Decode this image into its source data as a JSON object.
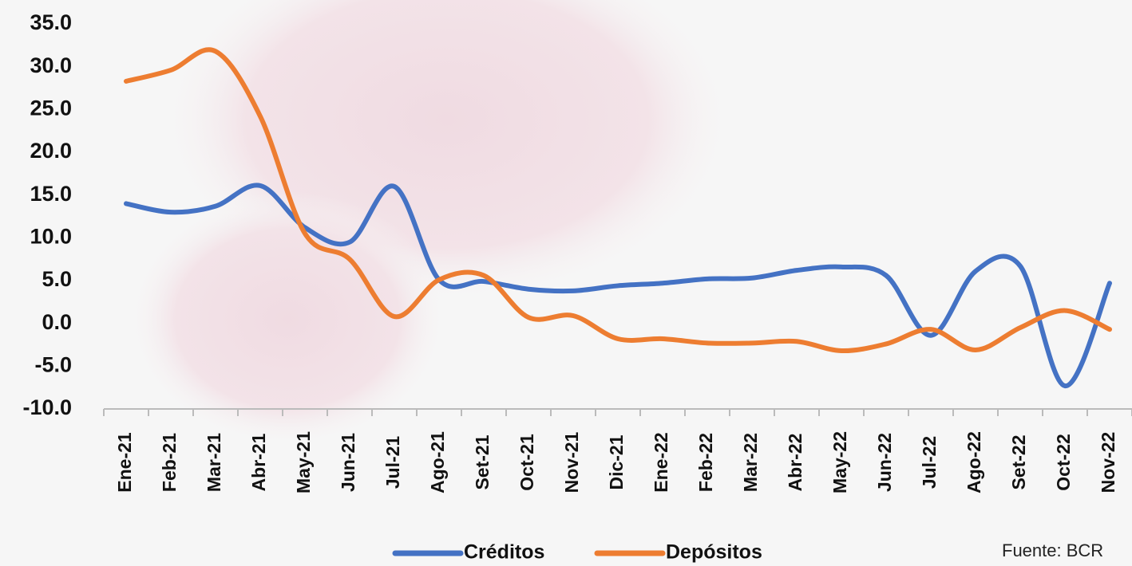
{
  "chart_data": {
    "type": "line",
    "categories": [
      "Ene-21",
      "Feb-21",
      "Mar-21",
      "Abr-21",
      "May-21",
      "Jun-21",
      "Jul-21",
      "Ago-21",
      "Set-21",
      "Oct-21",
      "Nov-21",
      "Dic-21",
      "Ene-22",
      "Feb-22",
      "Mar-22",
      "Abr-22",
      "May-22",
      "Jun-22",
      "Jul-22",
      "Ago-22",
      "Set-22",
      "Oct-22",
      "Nov-22"
    ],
    "series": [
      {
        "name": "Créditos",
        "color": "#4472c4",
        "values": [
          14.0,
          13.0,
          13.7,
          16.1,
          11.2,
          9.5,
          16.0,
          5.1,
          4.9,
          4.0,
          3.8,
          4.4,
          4.7,
          5.2,
          5.3,
          6.2,
          6.6,
          5.6,
          -1.4,
          6.1,
          6.7,
          -7.3,
          4.7
        ]
      },
      {
        "name": "Depósitos",
        "color": "#ed7d31",
        "values": [
          28.3,
          29.6,
          31.8,
          24.2,
          10.5,
          7.5,
          0.8,
          5.1,
          5.6,
          0.7,
          0.9,
          -1.8,
          -1.8,
          -2.3,
          -2.3,
          -2.1,
          -3.2,
          -2.4,
          -0.7,
          -3.1,
          -0.5,
          1.5,
          -0.7
        ]
      }
    ],
    "ylim": [
      -10,
      35
    ],
    "yticks": [
      {
        "value": -10,
        "label": "-10.0"
      },
      {
        "value": -5,
        "label": "-5.0"
      },
      {
        "value": 0,
        "label": "0.0"
      },
      {
        "value": 5,
        "label": "5.0"
      },
      {
        "value": 10,
        "label": "10.0"
      },
      {
        "value": 15,
        "label": "15.0"
      },
      {
        "value": 20,
        "label": "20.0"
      },
      {
        "value": 25,
        "label": "25.0"
      },
      {
        "value": 30,
        "label": "30.0"
      },
      {
        "value": 35,
        "label": "35.0"
      }
    ],
    "legend": "bottom",
    "source": "Fuente: BCR"
  }
}
